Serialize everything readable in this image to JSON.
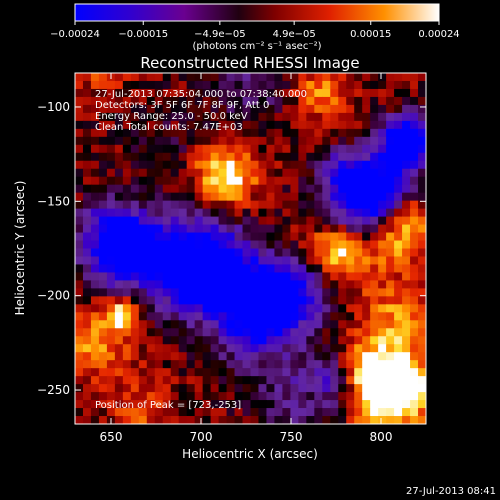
{
  "chart_data": {
    "type": "heatmap",
    "title": "Reconstructed RHESSI Image",
    "xlabel": "Heliocentric X (arcsec)",
    "ylabel": "Heliocentric Y (arcsec)",
    "xlim": [
      630,
      825
    ],
    "ylim": [
      -268,
      -82
    ],
    "x_ticks": [
      650,
      700,
      750,
      800
    ],
    "x_tick_labels": [
      "650",
      "700",
      "750",
      "800"
    ],
    "y_ticks": [
      -100,
      -150,
      -200,
      -250
    ],
    "y_tick_labels": [
      "−100",
      "−150",
      "−200",
      "−250"
    ],
    "colorbar": {
      "min": -0.00024,
      "max": 0.00024,
      "tick_values": [
        -0.00024,
        -0.00015,
        -4.9e-05,
        4.9e-05,
        0.00015,
        0.00024
      ],
      "tick_labels": [
        "−0.00024",
        "−0.00015",
        "−4.9e−05",
        "4.9e−05",
        "0.00015",
        "0.00024"
      ],
      "units_label": "(photons cm⁻² s⁻¹ asec⁻²)",
      "colors": [
        "#0000ff",
        "#4000c0",
        "#800080",
        "#000000",
        "#c00000",
        "#ff6000",
        "#ffc000",
        "#ffffff"
      ]
    },
    "annotations": [
      "27-Jul-2013 07:35:04.000 to 07:38:40.000",
      "Detectors: 3F 5F 6F 7F 8F 9F, Att 0",
      "Energy Range: 25.0 - 50.0 keV",
      "Clean     Total counts: 7.47E+03"
    ],
    "peak_label": "Position of Peak = [723,-253]",
    "peak_position": [
      723,
      -253
    ],
    "grid": false
  },
  "footer_timestamp": "27-Jul-2013 08:41"
}
